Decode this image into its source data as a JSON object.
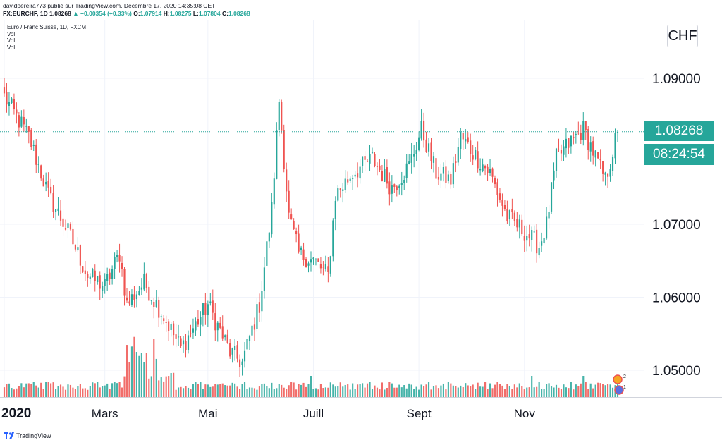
{
  "header": {
    "publisher_line": "davidpereira773 publié sur TradingView.com, Décembre 17, 2020 14:35:08 CET",
    "symbol": "FX:EURCHF, 1D",
    "last": "1.08268",
    "change_arrow": "▲",
    "change": "+0.00354 (+0.33%)",
    "o_label": "O:",
    "o": "1.07914",
    "h_label": "H:",
    "h": "1.08275",
    "l_label": "L:",
    "l": "1.07804",
    "c_label": "C:",
    "c": "1.08268"
  },
  "subheader": {
    "title": "Euro / Franc Suisse, 1D, FXCM",
    "studies": [
      "Vol",
      "Vol",
      "Vol"
    ]
  },
  "currency_badge": "CHF",
  "price_label": "1.08268",
  "countdown_label": "08:24:54",
  "footer": {
    "brand": "TradingView"
  },
  "events": {
    "badge1": "2",
    "badge2": "1"
  },
  "colors": {
    "up": "#26a69a",
    "down": "#ef5350",
    "vol_up": "#26a69a",
    "vol_down": "#ef5350",
    "price_line": "#26a69a"
  },
  "chart_data": {
    "type": "candlestick",
    "title": "Euro / Franc Suisse, 1D, FXCM",
    "ylabel": "CHF",
    "ylim": [
      1.0465,
      1.1005
    ],
    "y_ticks": [
      1.05,
      1.06,
      1.07,
      1.09
    ],
    "y_tick_labels": [
      "1.05000",
      "1.06000",
      "1.07000",
      "1.09000"
    ],
    "x_ticks": [
      {
        "label": "2020",
        "index": 0
      },
      {
        "label": "Mars",
        "index": 41
      },
      {
        "label": "Mai",
        "index": 83
      },
      {
        "label": "Juill",
        "index": 126
      },
      {
        "label": "Sept",
        "index": 169
      },
      {
        "label": "Nov",
        "index": 212
      }
    ],
    "last_price": 1.08268,
    "grid": true,
    "close_keypoints": [
      [
        0,
        1.0875
      ],
      [
        10,
        1.082
      ],
      [
        18,
        1.074
      ],
      [
        26,
        1.069
      ],
      [
        34,
        1.063
      ],
      [
        41,
        1.0615
      ],
      [
        47,
        1.066
      ],
      [
        50,
        1.059
      ],
      [
        57,
        1.062
      ],
      [
        64,
        1.058
      ],
      [
        72,
        1.053
      ],
      [
        83,
        1.059
      ],
      [
        92,
        1.0525
      ],
      [
        97,
        1.051
      ],
      [
        104,
        1.059
      ],
      [
        109,
        1.072
      ],
      [
        112,
        1.087
      ],
      [
        116,
        1.071
      ],
      [
        120,
        1.066
      ],
      [
        126,
        1.065
      ],
      [
        132,
        1.063
      ],
      [
        135,
        1.074
      ],
      [
        142,
        1.077
      ],
      [
        150,
        1.079
      ],
      [
        158,
        1.075
      ],
      [
        165,
        1.078
      ],
      [
        170,
        1.083
      ],
      [
        176,
        1.077
      ],
      [
        182,
        1.076
      ],
      [
        186,
        1.082
      ],
      [
        193,
        1.079
      ],
      [
        198,
        1.077
      ],
      [
        205,
        1.071
      ],
      [
        212,
        1.069
      ],
      [
        218,
        1.067
      ],
      [
        221,
        1.07
      ],
      [
        225,
        1.079
      ],
      [
        230,
        1.081
      ],
      [
        236,
        1.083
      ],
      [
        240,
        1.08
      ],
      [
        245,
        1.076
      ],
      [
        248,
        1.08
      ],
      [
        250,
        1.08268
      ]
    ],
    "volume_note": "daily volume bars (relative height 0-1) with spike near index 54-60"
  }
}
